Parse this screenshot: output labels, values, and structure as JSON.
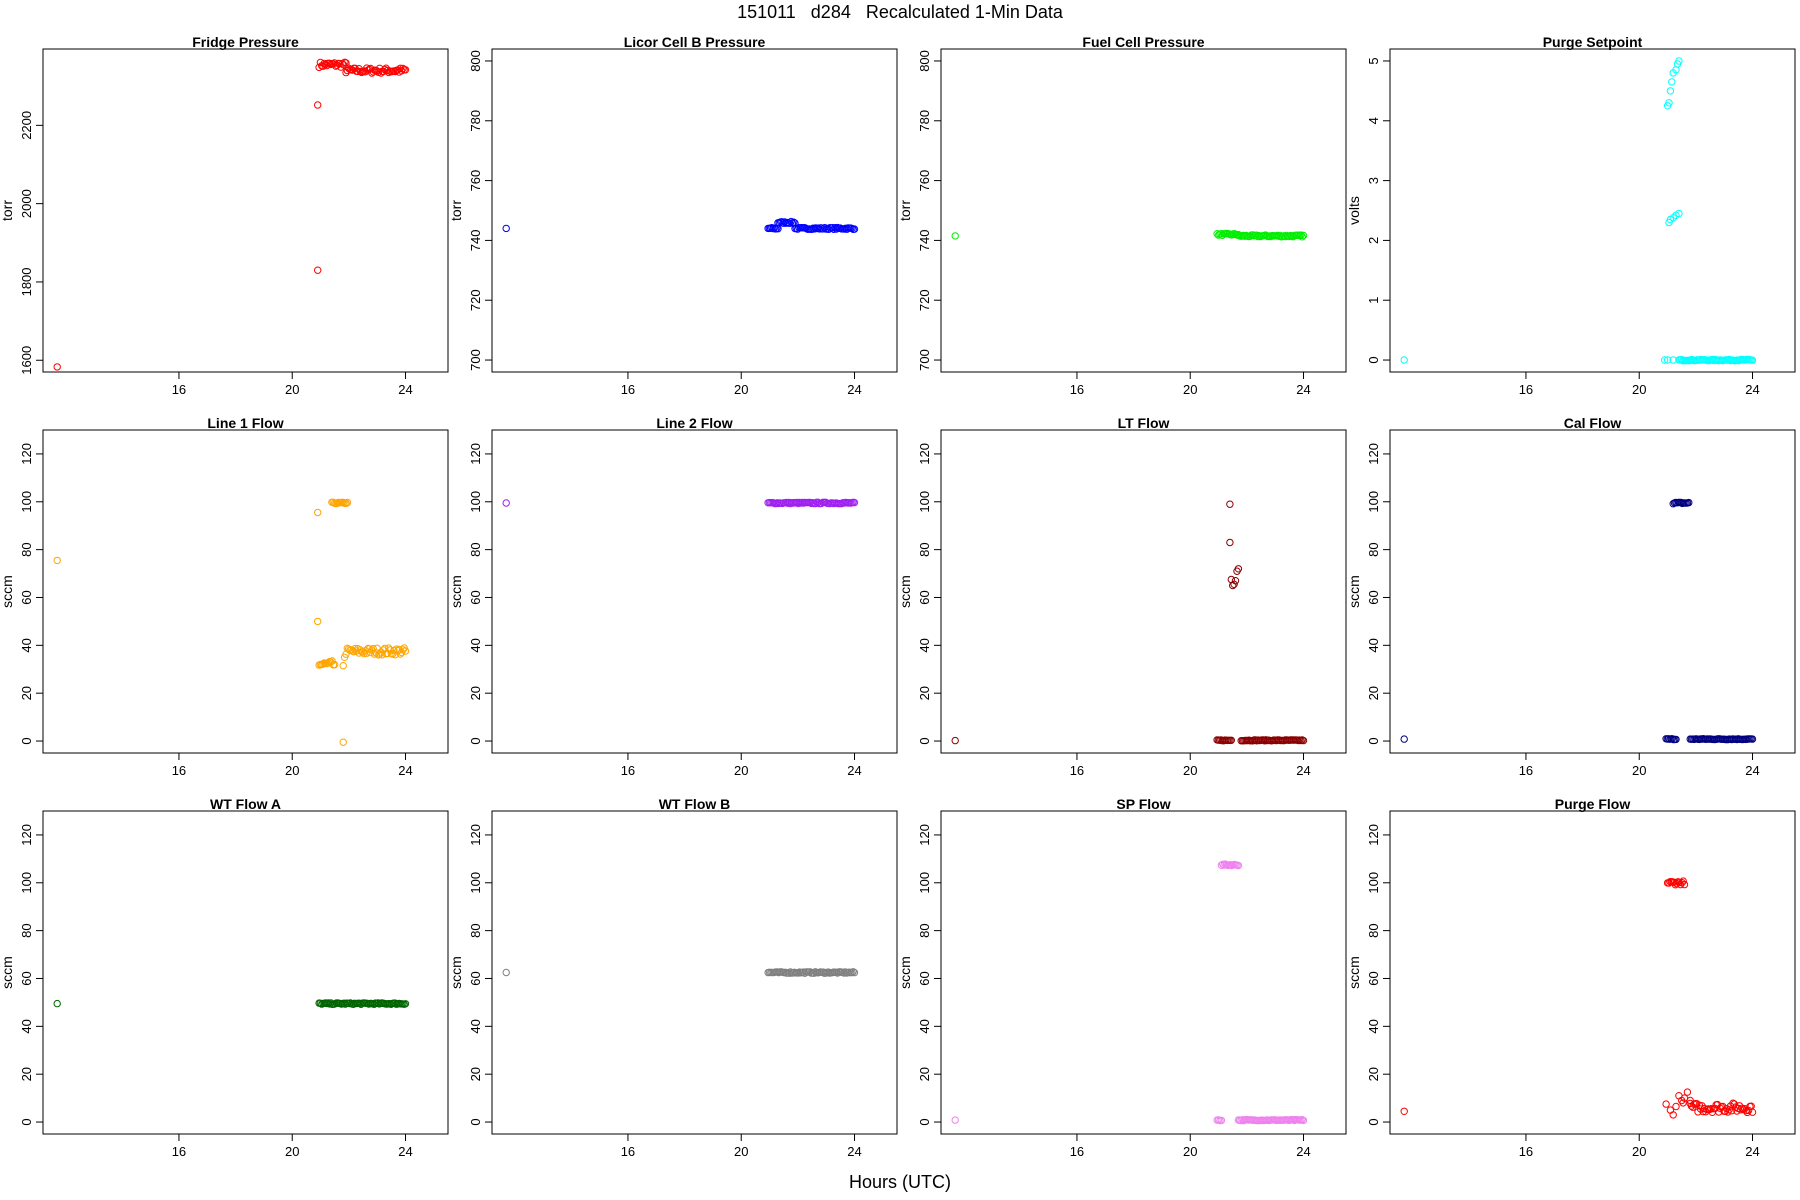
{
  "title": "151011   d284   Recalculated 1-Min Data",
  "x_axis_label": "Hours (UTC)",
  "chart_data": [
    {
      "type": "scatter",
      "title": "Fridge Pressure",
      "ylabel": "torr",
      "color": "#ff0000",
      "xlim": [
        11.2,
        25.5
      ],
      "ylim": [
        1570,
        2395
      ],
      "xticks": [
        16,
        20,
        24
      ],
      "yticks": [
        1600,
        1800,
        2000,
        2200
      ],
      "points": [
        [
          11.7,
          1583
        ],
        [
          20.9,
          1830
        ],
        [
          20.9,
          2252
        ]
      ],
      "bands": [
        {
          "x": [
            20.95,
            21.9
          ],
          "y": 2355,
          "spread": 7
        },
        {
          "x": [
            21.9,
            24.0
          ],
          "y": 2340,
          "spread": 7
        }
      ]
    },
    {
      "type": "scatter",
      "title": "Licor Cell B Pressure",
      "ylabel": "torr",
      "color": "#0000ff",
      "xlim": [
        11.2,
        25.5
      ],
      "ylim": [
        696,
        804
      ],
      "xticks": [
        16,
        20,
        24
      ],
      "yticks": [
        700,
        720,
        740,
        760,
        780,
        800
      ],
      "points": [
        [
          11.7,
          744
        ]
      ],
      "bands": [
        {
          "x": [
            20.95,
            21.3
          ],
          "y": 744,
          "spread": 0.3
        },
        {
          "x": [
            21.3,
            21.9
          ],
          "y": 746,
          "spread": 0.3
        },
        {
          "x": [
            21.9,
            24.0
          ],
          "y": 744,
          "spread": 0.3
        }
      ]
    },
    {
      "type": "scatter",
      "title": "Fuel Cell Pressure",
      "ylabel": "torr",
      "color": "#00ee00",
      "xlim": [
        11.2,
        25.5
      ],
      "ylim": [
        696,
        804
      ],
      "xticks": [
        16,
        20,
        24
      ],
      "yticks": [
        700,
        720,
        740,
        760,
        780,
        800
      ],
      "points": [
        [
          11.7,
          741.5
        ]
      ],
      "bands": [
        {
          "x": [
            20.95,
            21.7
          ],
          "y": 742,
          "spread": 0.3
        },
        {
          "x": [
            21.7,
            24.0
          ],
          "y": 741.5,
          "spread": 0.3
        }
      ]
    },
    {
      "type": "scatter",
      "title": "Purge Setpoint",
      "ylabel": "volts",
      "color": "#00ffff",
      "xlim": [
        11.2,
        25.5
      ],
      "ylim": [
        -0.2,
        5.2
      ],
      "xticks": [
        16,
        20,
        24
      ],
      "yticks": [
        0,
        1,
        2,
        3,
        4,
        5
      ],
      "points": [
        [
          11.7,
          0
        ],
        [
          20.9,
          0
        ],
        [
          21.0,
          0
        ],
        [
          21.2,
          0
        ],
        [
          21.0,
          4.25
        ],
        [
          21.05,
          4.3
        ],
        [
          21.1,
          4.5
        ],
        [
          21.15,
          4.65
        ],
        [
          21.2,
          4.8
        ],
        [
          21.3,
          4.85
        ],
        [
          21.35,
          4.95
        ],
        [
          21.4,
          5.0
        ],
        [
          21.05,
          2.3
        ],
        [
          21.1,
          2.35
        ],
        [
          21.2,
          2.38
        ],
        [
          21.3,
          2.42
        ],
        [
          21.4,
          2.45
        ]
      ],
      "bands": [
        {
          "x": [
            21.4,
            24.0
          ],
          "y": 0,
          "spread": 0.01
        }
      ]
    },
    {
      "type": "scatter",
      "title": "Line 1 Flow",
      "ylabel": "sccm",
      "color": "#ffa500",
      "xlim": [
        11.2,
        25.5
      ],
      "ylim": [
        -5,
        130
      ],
      "xticks": [
        16,
        20,
        24
      ],
      "yticks": [
        0,
        20,
        40,
        60,
        80,
        100,
        120
      ],
      "points": [
        [
          11.7,
          75.5
        ],
        [
          20.9,
          95.5
        ],
        [
          20.9,
          50
        ],
        [
          21.8,
          -0.5
        ],
        [
          21.8,
          31.5
        ],
        [
          21.85,
          35
        ]
      ],
      "bands": [
        {
          "x": [
            20.95,
            21.5
          ],
          "y": 32,
          "spread": 1.5
        },
        {
          "x": [
            21.4,
            21.95
          ],
          "y": 99.5,
          "spread": 0.3
        },
        {
          "x": [
            21.9,
            24.0
          ],
          "y": 37.5,
          "spread": 1.5
        }
      ]
    },
    {
      "type": "scatter",
      "title": "Line 2 Flow",
      "ylabel": "sccm",
      "color": "#a020f0",
      "xlim": [
        11.2,
        25.5
      ],
      "ylim": [
        -5,
        130
      ],
      "xticks": [
        16,
        20,
        24
      ],
      "yticks": [
        0,
        20,
        40,
        60,
        80,
        100,
        120
      ],
      "points": [
        [
          11.7,
          99.5
        ]
      ],
      "bands": [
        {
          "x": [
            20.95,
            24.0
          ],
          "y": 99.5,
          "spread": 0.3
        }
      ]
    },
    {
      "type": "scatter",
      "title": "LT Flow",
      "ylabel": "sccm",
      "color": "#8b0000",
      "xlim": [
        11.2,
        25.5
      ],
      "ylim": [
        -5,
        130
      ],
      "xticks": [
        16,
        20,
        24
      ],
      "yticks": [
        0,
        20,
        40,
        60,
        80,
        100,
        120
      ],
      "points": [
        [
          11.7,
          0.2
        ],
        [
          21.4,
          99
        ],
        [
          21.4,
          83
        ],
        [
          21.45,
          67.5
        ],
        [
          21.5,
          65
        ],
        [
          21.55,
          65.5
        ],
        [
          21.6,
          67
        ],
        [
          21.65,
          71
        ],
        [
          21.7,
          72
        ]
      ],
      "bands": [
        {
          "x": [
            20.95,
            21.45
          ],
          "y": 0.3,
          "spread": 0.2
        },
        {
          "x": [
            21.8,
            24.0
          ],
          "y": 0.3,
          "spread": 0.2
        }
      ]
    },
    {
      "type": "scatter",
      "title": "Cal Flow",
      "ylabel": "sccm",
      "color": "#000080",
      "xlim": [
        11.2,
        25.5
      ],
      "ylim": [
        -5,
        130
      ],
      "xticks": [
        16,
        20,
        24
      ],
      "yticks": [
        0,
        20,
        40,
        60,
        80,
        100,
        120
      ],
      "points": [
        [
          11.7,
          0.8
        ]
      ],
      "bands": [
        {
          "x": [
            20.95,
            21.3
          ],
          "y": 0.8,
          "spread": 0.2
        },
        {
          "x": [
            21.2,
            21.75
          ],
          "y": 99.5,
          "spread": 0.3
        },
        {
          "x": [
            21.8,
            24.0
          ],
          "y": 0.8,
          "spread": 0.2
        }
      ]
    },
    {
      "type": "scatter",
      "title": "WT Flow A",
      "ylabel": "sccm",
      "color": "#006400",
      "xlim": [
        11.2,
        25.5
      ],
      "ylim": [
        -5,
        130
      ],
      "xticks": [
        16,
        20,
        24
      ],
      "yticks": [
        0,
        20,
        40,
        60,
        80,
        100,
        120
      ],
      "points": [
        [
          11.7,
          49.5
        ]
      ],
      "bands": [
        {
          "x": [
            20.95,
            24.0
          ],
          "y": 49.5,
          "spread": 0.3
        }
      ]
    },
    {
      "type": "scatter",
      "title": "WT Flow B",
      "ylabel": "sccm",
      "color": "#808080",
      "xlim": [
        11.2,
        25.5
      ],
      "ylim": [
        -5,
        130
      ],
      "xticks": [
        16,
        20,
        24
      ],
      "yticks": [
        0,
        20,
        40,
        60,
        80,
        100,
        120
      ],
      "points": [
        [
          11.7,
          62.5
        ]
      ],
      "bands": [
        {
          "x": [
            20.95,
            24.0
          ],
          "y": 62.5,
          "spread": 0.3
        }
      ]
    },
    {
      "type": "scatter",
      "title": "SP Flow",
      "ylabel": "sccm",
      "color": "#ee82ee",
      "xlim": [
        11.2,
        25.5
      ],
      "ylim": [
        -5,
        130
      ],
      "xticks": [
        16,
        20,
        24
      ],
      "yticks": [
        0,
        20,
        40,
        60,
        80,
        100,
        120
      ],
      "points": [
        [
          11.7,
          0.8
        ]
      ],
      "bands": [
        {
          "x": [
            20.95,
            21.1
          ],
          "y": 0.8,
          "spread": 0.2
        },
        {
          "x": [
            21.1,
            21.7
          ],
          "y": 107.5,
          "spread": 0.3
        },
        {
          "x": [
            21.7,
            24.0
          ],
          "y": 0.8,
          "spread": 0.2
        }
      ]
    },
    {
      "type": "scatter",
      "title": "Purge Flow",
      "ylabel": "sccm",
      "color": "#ff0000",
      "xlim": [
        11.2,
        25.5
      ],
      "ylim": [
        -5,
        130
      ],
      "xticks": [
        16,
        20,
        24
      ],
      "yticks": [
        0,
        20,
        40,
        60,
        80,
        100,
        120
      ],
      "points": [
        [
          11.7,
          4.5
        ],
        [
          20.95,
          7.5
        ],
        [
          21.1,
          5
        ],
        [
          21.2,
          3
        ],
        [
          21.3,
          6.5
        ],
        [
          21.4,
          11
        ],
        [
          21.5,
          9
        ],
        [
          21.55,
          8
        ],
        [
          21.6,
          10
        ],
        [
          21.7,
          12.5
        ],
        [
          21.8,
          9
        ]
      ],
      "bands": [
        {
          "x": [
            21.0,
            21.6
          ],
          "y": 100,
          "spread": 0.8
        },
        {
          "x": [
            21.8,
            24.0
          ],
          "y": 6,
          "spread": 2.0
        }
      ]
    }
  ]
}
